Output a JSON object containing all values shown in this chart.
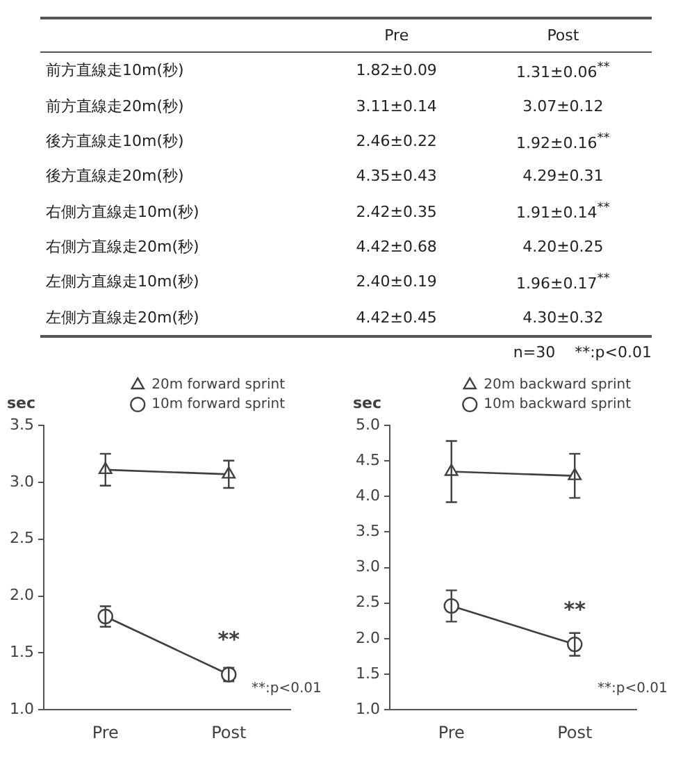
{
  "chart_data": [
    {
      "type": "other",
      "categories": [
        "前方直線走10m(秒)",
        "前方直線走20m(秒)",
        "後方直線走10m(秒)",
        "後方直線走20m(秒)",
        "右側方直線走10m(秒)",
        "右側方直線走20m(秒)",
        "左側方直線走10m(秒)",
        "左側方直線走20m(秒)"
      ],
      "annotations": [
        "Pre",
        "Post",
        "1.82±0.09",
        "1.31±0.06$^{**}$",
        "3.11±0.14",
        "3.07±0.12",
        "2.46±0.22",
        "1.92±0.16$^{**}$",
        "4.35±0.43",
        "4.29±0.31",
        "2.42±0.35",
        "1.91±0.14$^{**}$",
        "4.42±0.68",
        "4.20±0.25",
        "2.40±0.19",
        "1.96±0.17$^{**}$",
        "4.42±0.45",
        "4.30±0.32",
        "n=30",
        "**:p<0.01"
      ]
    },
    {
      "type": "line",
      "ylabel": "sec",
      "categories": [
        "Pre",
        "Post"
      ],
      "ylim": [
        1,
        3.5
      ],
      "yticks": [
        {
          "value": 1,
          "label": "1.0"
        },
        {
          "value": 1.5,
          "label": "1.5"
        },
        {
          "value": 2,
          "label": "2.0"
        },
        {
          "value": 2.5,
          "label": "2.5"
        },
        {
          "value": 3,
          "label": "3.0"
        },
        {
          "value": 3.5,
          "label": "3.5"
        }
      ],
      "series": [
        {
          "name": "20m forward sprint",
          "color": "#404040",
          "marker": "triangle",
          "values": [
            3.11,
            3.07
          ],
          "errors": [
            0.14,
            0.12
          ]
        },
        {
          "name": "10m forward sprint",
          "color": "#404040",
          "marker": "circle",
          "values": [
            1.82,
            1.31
          ],
          "errors": [
            0.09,
            0.06
          ]
        }
      ],
      "annotations": [
        {
          "text": "**",
          "x": "Post",
          "y": 1.31
        },
        "**:p<0.01"
      ],
      "legend": "top right",
      "grid": false,
      "line_style": "solid"
    },
    {
      "type": "line",
      "ylabel": "sec",
      "categories": [
        "Pre",
        "Post"
      ],
      "ylim": [
        1,
        5
      ],
      "yticks": [
        {
          "value": 1,
          "label": "1.0"
        },
        {
          "value": 1.5,
          "label": "1.5"
        },
        {
          "value": 2,
          "label": "2.0"
        },
        {
          "value": 2.5,
          "label": "2.5"
        },
        {
          "value": 3,
          "label": "3.0"
        },
        {
          "value": 3.5,
          "label": "3.5"
        },
        {
          "value": 4,
          "label": "4.0"
        },
        {
          "value": 4.5,
          "label": "4.5"
        },
        {
          "value": 5,
          "label": "5.0"
        }
      ],
      "series": [
        {
          "name": "20m backward sprint",
          "color": "#404040",
          "marker": "triangle",
          "values": [
            4.35,
            4.29
          ],
          "errors": [
            0.43,
            0.31
          ]
        },
        {
          "name": "10m backward sprint",
          "color": "#404040",
          "marker": "circle",
          "values": [
            2.46,
            1.92
          ],
          "errors": [
            0.22,
            0.16
          ]
        }
      ],
      "annotations": [
        {
          "text": "**",
          "x": "Post",
          "y": 1.92
        },
        "**:p<0.01"
      ],
      "legend": "top right",
      "grid": false,
      "line_style": "solid"
    }
  ]
}
